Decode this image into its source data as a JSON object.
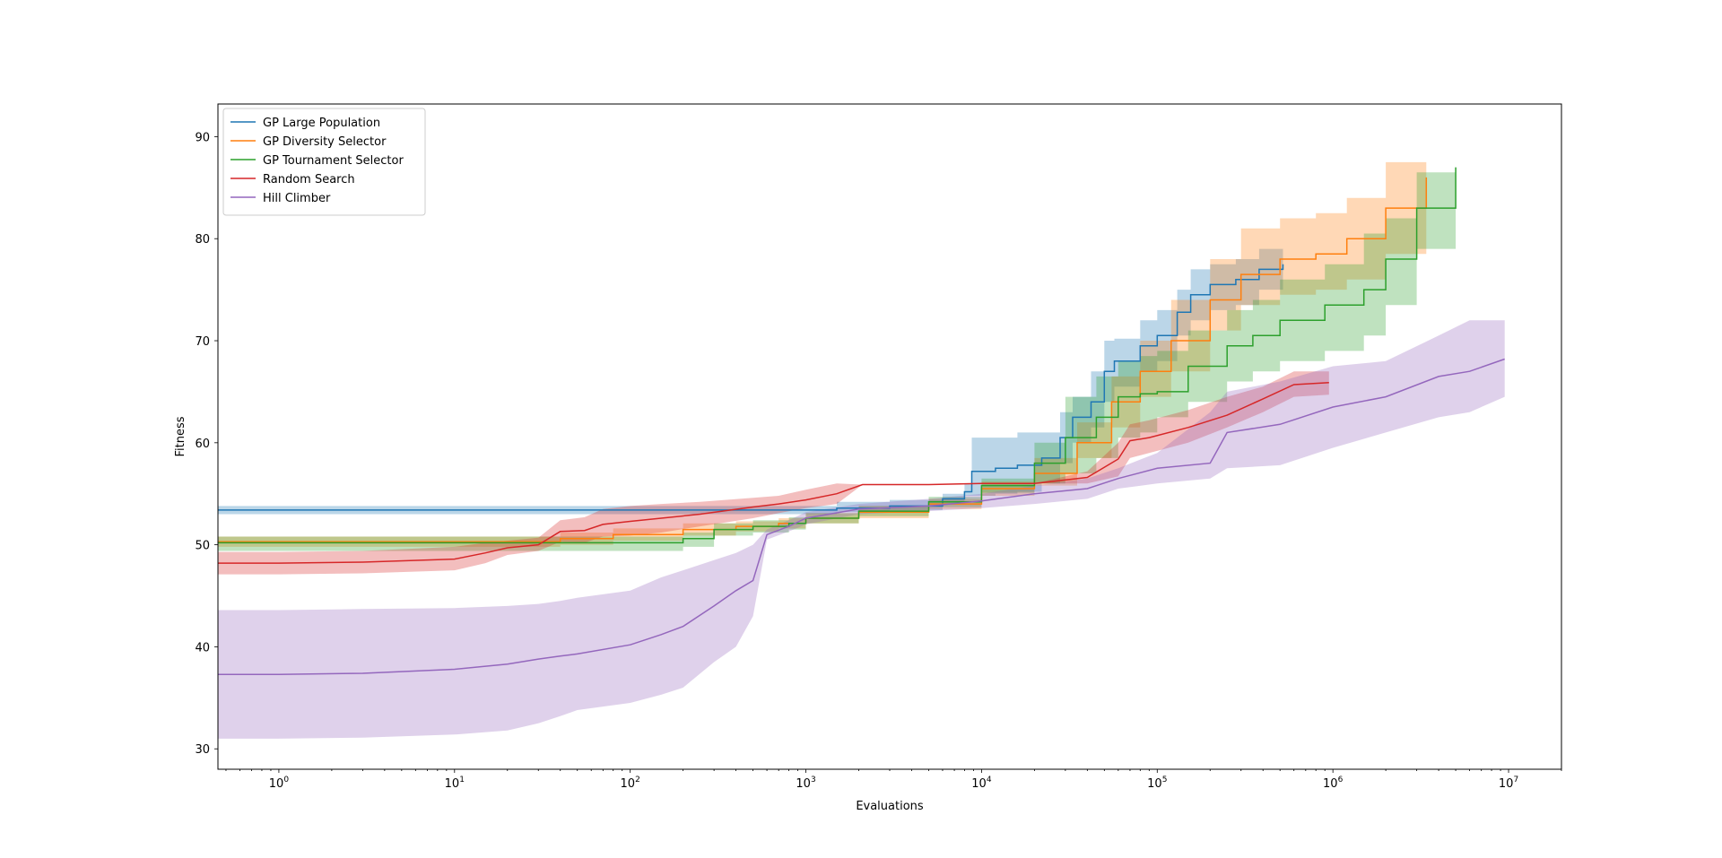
{
  "chart_data": {
    "type": "line",
    "title": "",
    "xlabel": "Evaluations",
    "ylabel": "Fitness",
    "xscale": "log",
    "xlim": [
      0.45,
      20000000
    ],
    "ylim": [
      28,
      93.2
    ],
    "x_ticks": [
      1,
      10,
      100,
      1000,
      10000,
      100000,
      1000000,
      10000000
    ],
    "x_tick_labels": [
      {
        "base": "10",
        "exp": "0"
      },
      {
        "base": "10",
        "exp": "1"
      },
      {
        "base": "10",
        "exp": "2"
      },
      {
        "base": "10",
        "exp": "3"
      },
      {
        "base": "10",
        "exp": "4"
      },
      {
        "base": "10",
        "exp": "5"
      },
      {
        "base": "10",
        "exp": "6"
      },
      {
        "base": "10",
        "exp": "7"
      }
    ],
    "y_ticks": [
      30,
      40,
      50,
      60,
      70,
      80,
      90
    ],
    "y_tick_labels": [
      "30",
      "40",
      "50",
      "60",
      "70",
      "80",
      "90"
    ],
    "grid": false,
    "legend_position": "upper-left",
    "series": [
      {
        "name": "GP Large Population",
        "color": "#1f77b4",
        "step": true,
        "x": [
          0.45,
          1000,
          1500,
          3000,
          6000,
          8000,
          8800,
          12000,
          16000,
          22000,
          28000,
          33000,
          42000,
          50000,
          57000,
          80000,
          100000,
          130000,
          155000,
          200000,
          280000,
          380000,
          520000
        ],
        "y": [
          53.4,
          53.4,
          53.6,
          53.8,
          54.5,
          55.2,
          57.2,
          57.5,
          57.8,
          58.5,
          60.5,
          62.5,
          64.0,
          67.0,
          68.0,
          69.5,
          70.5,
          72.8,
          74.5,
          75.5,
          76.0,
          77.0,
          77.5
        ],
        "upper": [
          53.8,
          53.8,
          54.2,
          54.4,
          55.0,
          56.0,
          60.5,
          60.5,
          61.0,
          61.0,
          63.0,
          64.5,
          67.0,
          70.0,
          70.2,
          72.0,
          73.0,
          75.0,
          77.0,
          77.5,
          78.0,
          79.0,
          79.5
        ],
        "lower": [
          53.0,
          53.0,
          53.2,
          53.4,
          54.0,
          54.8,
          54.8,
          55.0,
          55.2,
          56.0,
          58.0,
          60.0,
          61.5,
          64.0,
          65.5,
          67.0,
          68.0,
          70.5,
          72.0,
          73.0,
          73.5,
          75.0,
          75.5
        ]
      },
      {
        "name": "GP Diversity Selector",
        "color": "#ff7f0e",
        "step": true,
        "x": [
          0.45,
          10,
          40,
          80,
          200,
          400,
          700,
          1000,
          2000,
          5000,
          10000,
          20000,
          35000,
          55000,
          80000,
          120000,
          200000,
          300000,
          500000,
          800000,
          1200000,
          2000000,
          3400000
        ],
        "y": [
          50.3,
          50.3,
          50.6,
          51.0,
          51.5,
          51.8,
          52.1,
          52.6,
          53.2,
          54.0,
          55.5,
          57.0,
          60.0,
          64.0,
          67.0,
          70.0,
          74.0,
          76.5,
          78.0,
          78.5,
          80.0,
          83.0,
          86.0
        ],
        "upper": [
          50.8,
          50.8,
          51.2,
          51.6,
          52.1,
          52.3,
          52.6,
          53.1,
          53.8,
          54.5,
          56.2,
          58.5,
          62.0,
          66.5,
          70.0,
          74.0,
          78.0,
          81.0,
          82.0,
          82.5,
          84.0,
          87.5,
          89.0
        ],
        "lower": [
          49.8,
          49.8,
          50.0,
          50.4,
          50.9,
          51.3,
          51.6,
          52.1,
          52.6,
          53.5,
          54.8,
          55.8,
          58.5,
          61.5,
          64.5,
          67.0,
          71.0,
          73.5,
          74.5,
          75.0,
          76.0,
          78.5,
          83.0
        ]
      },
      {
        "name": "GP Tournament Selector",
        "color": "#2ca02c",
        "step": true,
        "x": [
          0.45,
          100,
          200,
          300,
          500,
          800,
          1000,
          2000,
          5000,
          10000,
          20000,
          30000,
          45000,
          60000,
          80000,
          100000,
          150000,
          250000,
          350000,
          500000,
          900000,
          1500000,
          2000000,
          3000000,
          5000000
        ],
        "y": [
          50.2,
          50.2,
          50.6,
          51.5,
          51.8,
          52.1,
          52.6,
          53.3,
          54.2,
          55.8,
          58.0,
          60.5,
          62.5,
          64.5,
          64.8,
          65.0,
          67.5,
          69.5,
          70.5,
          72.0,
          73.5,
          75.0,
          78.0,
          83.0,
          87.0
        ],
        "upper": [
          50.8,
          50.8,
          51.2,
          52.1,
          52.4,
          52.7,
          53.1,
          53.8,
          54.7,
          56.5,
          60.0,
          64.5,
          66.5,
          68.0,
          68.5,
          69.0,
          71.0,
          73.0,
          74.0,
          76.0,
          77.5,
          80.5,
          82.0,
          86.5,
          90.5
        ],
        "lower": [
          49.4,
          49.4,
          49.8,
          50.9,
          51.2,
          51.5,
          52.1,
          52.8,
          53.7,
          55.1,
          56.0,
          57.0,
          58.5,
          60.5,
          61.0,
          62.5,
          64.0,
          66.0,
          67.0,
          68.0,
          69.0,
          70.5,
          73.5,
          79.0,
          84.0
        ]
      },
      {
        "name": "Random Search",
        "color": "#d62728",
        "step": false,
        "x": [
          0.45,
          1,
          3,
          10,
          15,
          20,
          30,
          40,
          55,
          70,
          100,
          150,
          250,
          500,
          700,
          1000,
          1500,
          2100,
          5000,
          10000,
          20000,
          40000,
          60000,
          70000,
          90000,
          150000,
          250000,
          400000,
          600000,
          950000
        ],
        "y": [
          48.2,
          48.2,
          48.3,
          48.6,
          49.2,
          49.7,
          50.0,
          51.3,
          51.4,
          52.0,
          52.3,
          52.6,
          53.0,
          53.7,
          54.0,
          54.4,
          55.0,
          55.9,
          55.9,
          56.0,
          56.0,
          56.6,
          58.4,
          60.2,
          60.5,
          61.5,
          62.7,
          64.3,
          65.7,
          65.9
        ],
        "upper": [
          49.3,
          49.3,
          49.4,
          49.8,
          50.2,
          50.4,
          50.7,
          52.4,
          52.7,
          53.5,
          53.8,
          54.0,
          54.2,
          54.6,
          54.8,
          55.4,
          56.0,
          55.9,
          55.9,
          56.0,
          56.0,
          57.2,
          60.0,
          61.8,
          62.2,
          63.2,
          64.5,
          65.5,
          67.0,
          67.0
        ],
        "lower": [
          47.1,
          47.1,
          47.2,
          47.5,
          48.2,
          49.0,
          49.4,
          50.3,
          50.2,
          50.8,
          50.9,
          51.2,
          51.8,
          52.6,
          53.1,
          53.6,
          54.0,
          55.9,
          55.9,
          56.0,
          56.0,
          56.0,
          56.7,
          58.5,
          59.0,
          60.0,
          61.5,
          63.0,
          64.5,
          64.7
        ]
      },
      {
        "name": "Hill Climber",
        "color": "#9467bd",
        "step": false,
        "x": [
          0.45,
          1,
          3,
          10,
          20,
          30,
          40,
          50,
          100,
          150,
          200,
          300,
          400,
          500,
          600,
          800,
          1000,
          2000,
          5000,
          10000,
          20000,
          40000,
          60000,
          100000,
          200000,
          250000,
          500000,
          1000000,
          2000000,
          4000000,
          6000000,
          9500000
        ],
        "y": [
          37.3,
          37.3,
          37.4,
          37.8,
          38.3,
          38.8,
          39.1,
          39.3,
          40.2,
          41.2,
          42.0,
          44.0,
          45.5,
          46.5,
          51.0,
          51.8,
          52.6,
          53.5,
          53.8,
          54.3,
          55.0,
          55.5,
          56.5,
          57.5,
          58.0,
          61.0,
          61.8,
          63.5,
          64.5,
          66.5,
          67.0,
          68.2
        ],
        "upper": [
          43.6,
          43.6,
          43.7,
          43.8,
          44.0,
          44.2,
          44.5,
          44.8,
          45.5,
          46.8,
          47.5,
          48.5,
          49.2,
          50.0,
          51.5,
          52.4,
          53.2,
          54.0,
          54.5,
          55.0,
          55.8,
          56.5,
          57.5,
          59.0,
          63.0,
          65.0,
          66.0,
          67.5,
          68.0,
          70.5,
          72.0,
          72.0
        ],
        "lower": [
          31.0,
          31.0,
          31.1,
          31.4,
          31.8,
          32.5,
          33.2,
          33.8,
          34.5,
          35.3,
          36.0,
          38.5,
          40.0,
          43.0,
          50.5,
          51.3,
          52.0,
          53.0,
          53.3,
          53.6,
          54.0,
          54.5,
          55.5,
          56.0,
          56.5,
          57.5,
          57.8,
          59.5,
          61.0,
          62.5,
          63.0,
          64.5
        ]
      }
    ]
  }
}
